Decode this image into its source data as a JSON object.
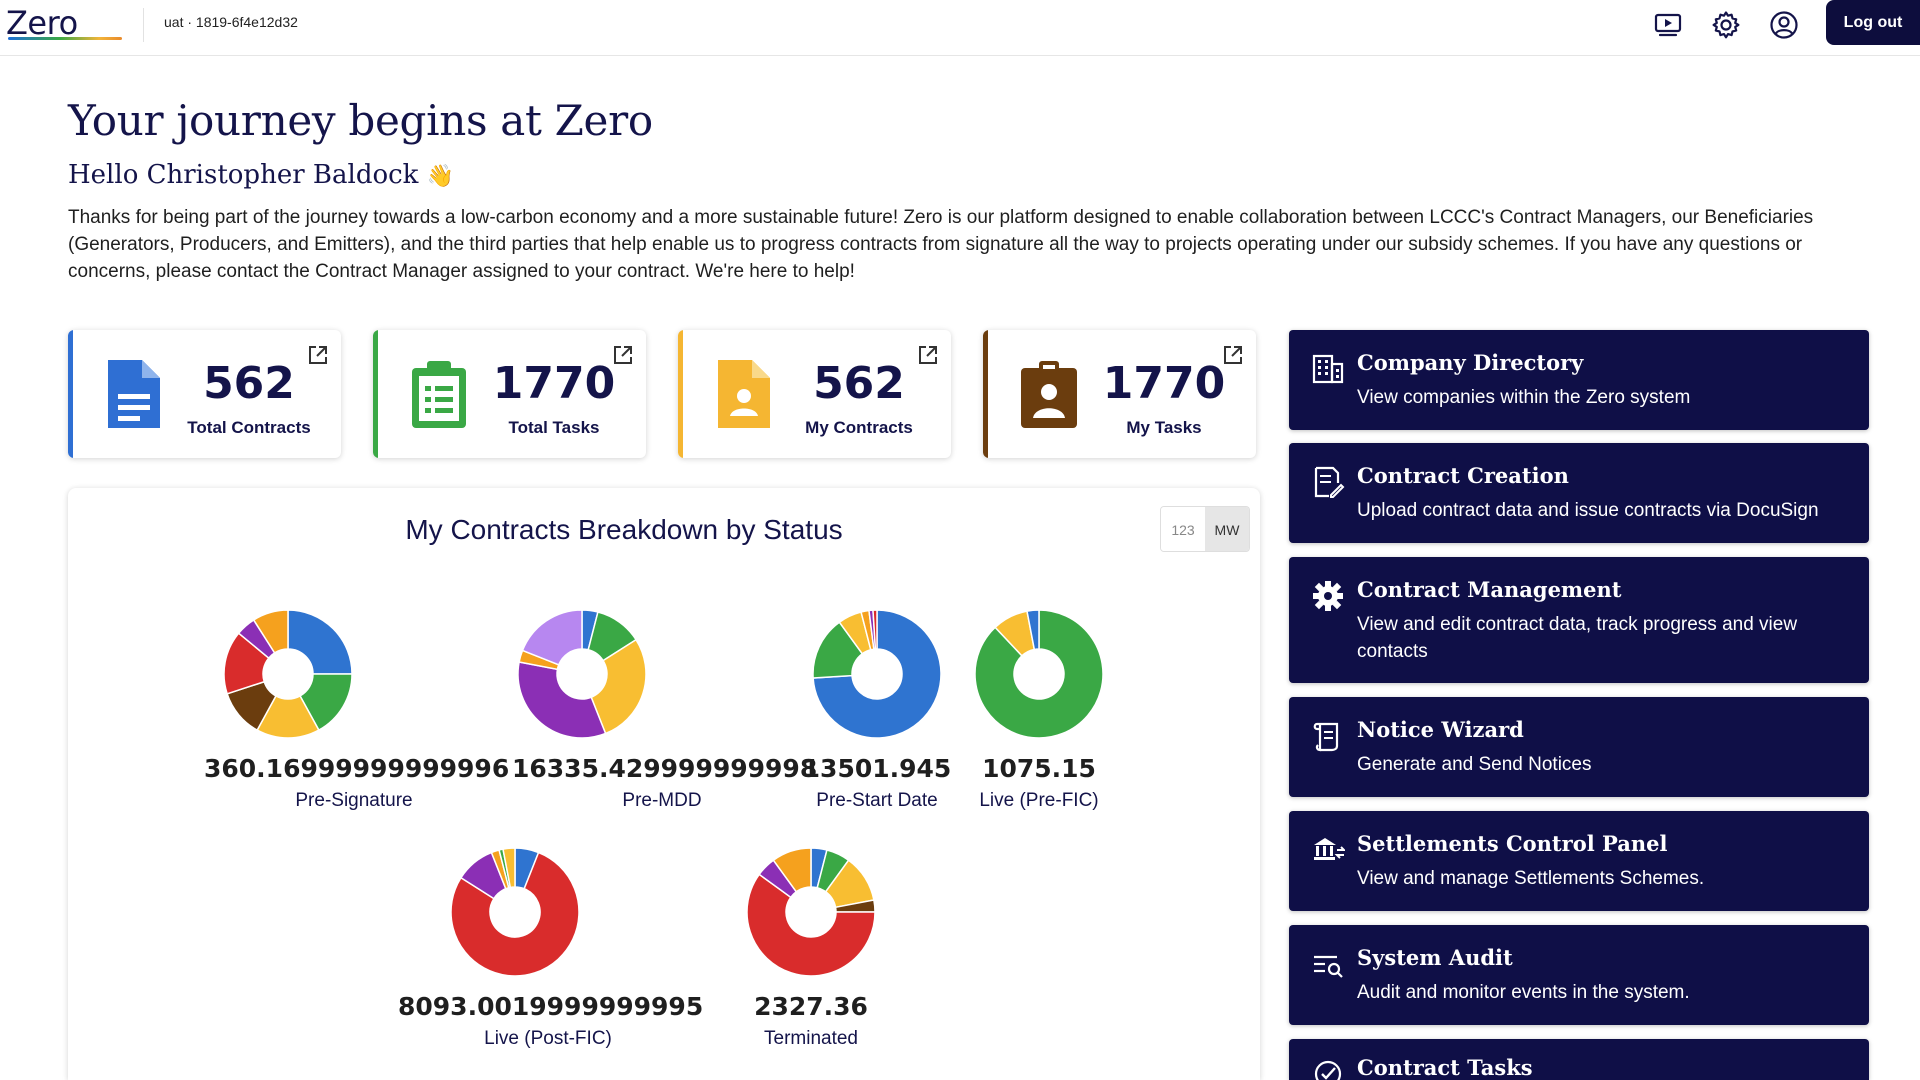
{
  "header": {
    "logo": "Zero",
    "env": "uat · 1819-6f4e12d32",
    "logout_label": "Log out",
    "icons": [
      "play-screen-icon",
      "gear-icon",
      "user-circle-icon"
    ]
  },
  "hero": {
    "title": "Your journey begins at Zero",
    "greeting": "Hello Christopher Baldock",
    "wave_emoji": "👋",
    "paragraph": "Thanks for being part of the journey towards a low-carbon economy and a more sustainable future! Zero is our platform designed to enable collaboration between LCCC's Contract Managers, our Beneficiaries (Generators, Producers, and Emitters), and the third parties that help enable us to progress contracts from signature all the way to projects operating under our subsidy schemes. If you have any questions or concerns, please contact the Contract Manager assigned to your contract. We're here to help!"
  },
  "stats": [
    {
      "value": "562",
      "label": "Total Contracts",
      "icon": "document-icon",
      "color": "#2f6fd3"
    },
    {
      "value": "1770",
      "label": "Total Tasks",
      "icon": "clipboard-list-icon",
      "color": "#3aa845"
    },
    {
      "value": "562",
      "label": "My Contracts",
      "icon": "contact-file-icon",
      "color": "#f5b632"
    },
    {
      "value": "1770",
      "label": "My Tasks",
      "icon": "id-badge-icon",
      "color": "#6b3d0e"
    }
  ],
  "chart_panel": {
    "title": "My Contracts Breakdown by Status",
    "toggle": {
      "options": [
        "123",
        "MW"
      ],
      "selected": "MW"
    }
  },
  "chart_data": {
    "type": "pie",
    "title": "My Contracts Breakdown by Status",
    "units_selected": "MW",
    "charts": [
      {
        "category": "Pre-Signature",
        "total": "360.16999999999996",
        "slices": [
          {
            "color": "#2f74d0",
            "value": 25
          },
          {
            "color": "#3aa845",
            "value": 17
          },
          {
            "color": "#f8be32",
            "value": 16
          },
          {
            "color": "#6b3d0e",
            "value": 12
          },
          {
            "color": "#d92c2c",
            "value": 16
          },
          {
            "color": "#8b2fb5",
            "value": 5
          },
          {
            "color": "#f5a11e",
            "value": 9
          }
        ]
      },
      {
        "category": "Pre-MDD",
        "total": "16335.429999999998",
        "slices": [
          {
            "color": "#2f74d0",
            "value": 4
          },
          {
            "color": "#3aa845",
            "value": 12
          },
          {
            "color": "#f8be32",
            "value": 28
          },
          {
            "color": "#8b2fb5",
            "value": 34
          },
          {
            "color": "#f5a11e",
            "value": 3
          },
          {
            "color": "#b787f0",
            "value": 19
          }
        ]
      },
      {
        "category": "Pre-Start Date",
        "total": "13501.945",
        "slices": [
          {
            "color": "#2f74d0",
            "value": 74
          },
          {
            "color": "#3aa845",
            "value": 16
          },
          {
            "color": "#f8be32",
            "value": 6
          },
          {
            "color": "#f5a11e",
            "value": 2
          },
          {
            "color": "#8b2fb5",
            "value": 1
          },
          {
            "color": "#d92c2c",
            "value": 1
          }
        ]
      },
      {
        "category": "Live (Pre-FIC)",
        "total": "1075.15",
        "slices": [
          {
            "color": "#3aa845",
            "value": 88
          },
          {
            "color": "#f8be32",
            "value": 9
          },
          {
            "color": "#2f74d0",
            "value": 3
          }
        ]
      },
      {
        "category": "Live (Post-FIC)",
        "total": "8093.0019999999995",
        "slices": [
          {
            "color": "#2f74d0",
            "value": 6
          },
          {
            "color": "#d92c2c",
            "value": 78
          },
          {
            "color": "#8b2fb5",
            "value": 10
          },
          {
            "color": "#f5a11e",
            "value": 2
          },
          {
            "color": "#3aa845",
            "value": 1
          },
          {
            "color": "#f8be32",
            "value": 3
          }
        ]
      },
      {
        "category": "Terminated",
        "total": "2327.36",
        "slices": [
          {
            "color": "#2f74d0",
            "value": 4
          },
          {
            "color": "#3aa845",
            "value": 6
          },
          {
            "color": "#f8be32",
            "value": 12
          },
          {
            "color": "#6b3d0e",
            "value": 3
          },
          {
            "color": "#d92c2c",
            "value": 60
          },
          {
            "color": "#8b2fb5",
            "value": 5
          },
          {
            "color": "#f5a11e",
            "value": 10
          }
        ]
      }
    ]
  },
  "nav": [
    {
      "title": "Company Directory",
      "desc": "View companies within the Zero system",
      "icon": "building-icon"
    },
    {
      "title": "Contract Creation",
      "desc": "Upload contract data and issue contracts via DocuSign",
      "icon": "document-sign-icon"
    },
    {
      "title": "Contract Management",
      "desc": "View and edit contract data, track progress and view contacts",
      "icon": "gear-icon"
    },
    {
      "title": "Notice Wizard",
      "desc": "Generate and Send Notices",
      "icon": "scroll-icon"
    },
    {
      "title": "Settlements Control Panel",
      "desc": "View and manage Settlements Schemes.",
      "icon": "bank-exchange-icon"
    },
    {
      "title": "System Audit",
      "desc": "Audit and monitor events in the system.",
      "icon": "list-search-icon"
    },
    {
      "title": "Contract Tasks",
      "desc": "",
      "icon": "task-check-icon"
    }
  ]
}
